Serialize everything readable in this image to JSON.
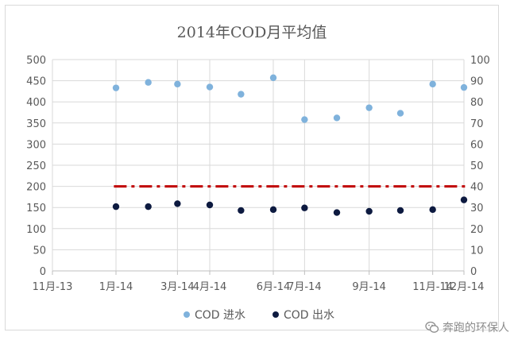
{
  "chart_data": {
    "type": "scatter",
    "title": "2014年COD月平均值",
    "x_ticks": [
      "11月-13",
      "1月-14",
      "3月-14",
      "4月-14",
      "6月-14",
      "7月-14",
      "9月-14",
      "11月-14",
      "12月-14"
    ],
    "x_dates": [
      "2013-11-01",
      "2014-01-01",
      "2014-03-01",
      "2014-04-01",
      "2014-06-01",
      "2014-07-01",
      "2014-09-01",
      "2014-11-01",
      "2014-12-01"
    ],
    "y_left_ticks": [
      "0",
      "50",
      "100",
      "150",
      "200",
      "250",
      "300",
      "350",
      "400",
      "450",
      "500"
    ],
    "y_right_ticks": [
      "0",
      "10",
      "20",
      "30",
      "40",
      "50",
      "60",
      "70",
      "80",
      "90",
      "100"
    ],
    "ylim_left": [
      0,
      500
    ],
    "ylim_right": [
      0,
      100
    ],
    "grid": true,
    "legend_position": "bottom",
    "series": [
      {
        "name": "COD 进水",
        "axis": "left",
        "color": "#7fb2dc",
        "points": [
          {
            "x": "2014-01-01",
            "y": 433
          },
          {
            "x": "2014-02-01",
            "y": 446
          },
          {
            "x": "2014-03-01",
            "y": 442
          },
          {
            "x": "2014-04-01",
            "y": 435
          },
          {
            "x": "2014-05-01",
            "y": 418
          },
          {
            "x": "2014-06-01",
            "y": 457
          },
          {
            "x": "2014-07-01",
            "y": 358
          },
          {
            "x": "2014-08-01",
            "y": 362
          },
          {
            "x": "2014-09-01",
            "y": 386
          },
          {
            "x": "2014-10-01",
            "y": 373
          },
          {
            "x": "2014-11-01",
            "y": 442
          },
          {
            "x": "2014-12-01",
            "y": 434
          }
        ]
      },
      {
        "name": "COD 出水",
        "axis": "left",
        "color": "#0d1a40",
        "points": [
          {
            "x": "2014-01-01",
            "y": 152
          },
          {
            "x": "2014-02-01",
            "y": 152
          },
          {
            "x": "2014-03-01",
            "y": 159
          },
          {
            "x": "2014-04-01",
            "y": 156
          },
          {
            "x": "2014-05-01",
            "y": 143
          },
          {
            "x": "2014-06-01",
            "y": 145
          },
          {
            "x": "2014-07-01",
            "y": 149
          },
          {
            "x": "2014-08-01",
            "y": 138
          },
          {
            "x": "2014-09-01",
            "y": 141
          },
          {
            "x": "2014-10-01",
            "y": 143
          },
          {
            "x": "2014-11-01",
            "y": 145
          },
          {
            "x": "2014-12-01",
            "y": 168
          }
        ]
      }
    ],
    "reference_line": {
      "value": 200,
      "axis": "left",
      "style": "dash-dot",
      "color": "#c00000"
    }
  },
  "watermark": {
    "text": "奔跑的环保人"
  }
}
